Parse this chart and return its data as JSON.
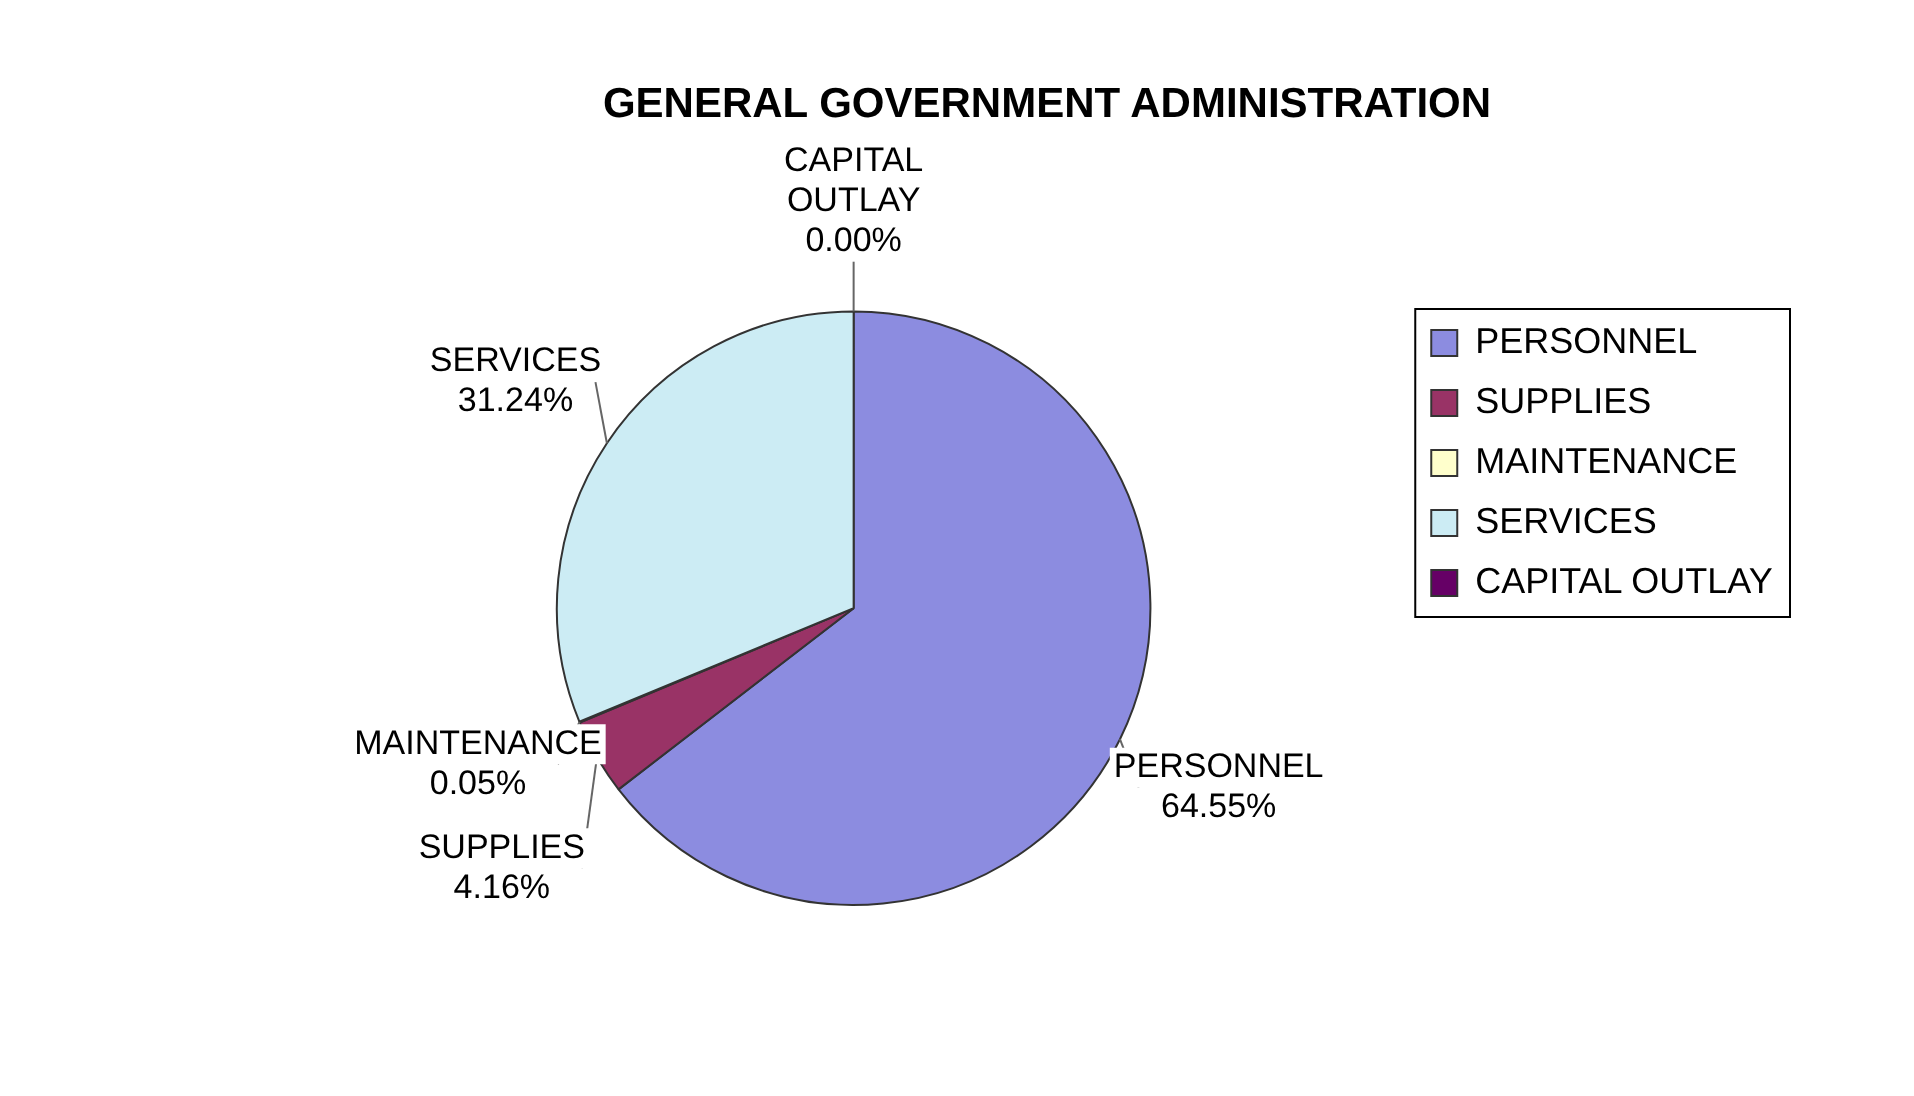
{
  "chart_data": {
    "type": "pie",
    "title": "GENERAL GOVERNMENT ADMINISTRATION",
    "categories": [
      "PERSONNEL",
      "SUPPLIES",
      "MAINTENANCE",
      "SERVICES",
      "CAPITAL OUTLAY"
    ],
    "values": [
      64.55,
      4.16,
      0.05,
      31.24,
      0.0
    ],
    "value_labels": [
      "64.55%",
      "4.16%",
      "0.05%",
      "31.24%",
      "0.00%"
    ],
    "colors": [
      "#8c8ce0",
      "#993366",
      "#ffffcc",
      "#ccecf4",
      "#660066"
    ],
    "legend": "right"
  }
}
